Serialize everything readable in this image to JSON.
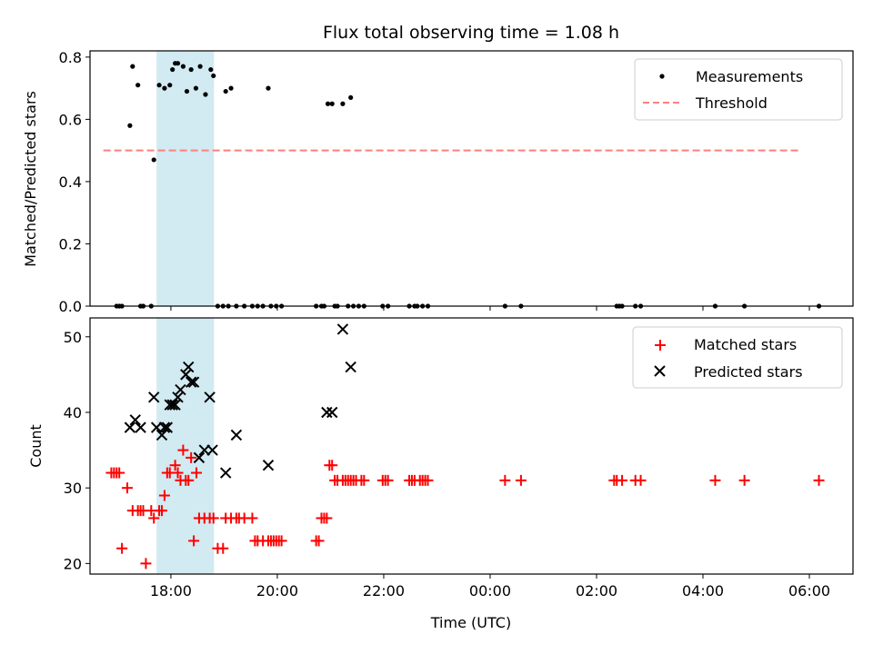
{
  "chart_data": [
    {
      "type": "scatter",
      "title": "Flux total observing time = 1.08 h",
      "xlabel": "",
      "ylabel": "Matched/Predicted stars",
      "xlim": [
        16.48,
        30.82
      ],
      "ylim": [
        0,
        0.82
      ],
      "yticks": [
        0.0,
        0.2,
        0.4,
        0.6,
        0.8
      ],
      "ytick_labels": [
        "0.0",
        "0.2",
        "0.4",
        "0.6",
        "0.8"
      ],
      "shaded_band": {
        "x_start": 17.73,
        "x_end": 18.81,
        "color": "#add8e6"
      },
      "legend": {
        "placement": "upper-right"
      },
      "series": [
        {
          "name": "Measurements",
          "marker": "dot",
          "color": "#000000",
          "x": [
            16.98,
            17.03,
            17.08,
            17.43,
            17.48,
            17.23,
            17.28,
            17.38,
            17.68,
            17.78,
            17.88,
            17.98,
            18.03,
            18.08,
            18.13,
            18.23,
            18.3,
            18.38,
            18.47,
            18.55,
            18.65,
            18.75,
            18.8,
            19.03,
            19.13,
            19.83,
            20.95,
            21.03,
            21.23,
            21.38,
            17.63,
            18.88,
            18.98,
            19.08,
            19.23,
            19.38,
            19.53,
            19.63,
            19.73,
            19.88,
            19.98,
            20.08,
            20.73,
            20.83,
            20.88,
            21.08,
            21.13,
            21.33,
            21.43,
            21.53,
            21.63,
            21.98,
            22.08,
            22.48,
            22.58,
            22.63,
            22.73,
            22.83,
            24.28,
            24.58,
            26.38,
            26.43,
            26.48,
            26.73,
            26.83,
            28.23,
            28.78,
            30.18
          ],
          "y": [
            0.0,
            0.0,
            0.0,
            0.0,
            0.0,
            0.58,
            0.77,
            0.71,
            0.47,
            0.71,
            0.7,
            0.71,
            0.76,
            0.78,
            0.78,
            0.77,
            0.69,
            0.76,
            0.7,
            0.77,
            0.68,
            0.76,
            0.74,
            0.69,
            0.7,
            0.7,
            0.65,
            0.65,
            0.65,
            0.67,
            0.0,
            0.0,
            0.0,
            0.0,
            0.0,
            0.0,
            0.0,
            0.0,
            0.0,
            0.0,
            0.0,
            0.0,
            0.0,
            0.0,
            0.0,
            0.0,
            0.0,
            0.0,
            0.0,
            0.0,
            0.0,
            0.0,
            0.0,
            0.0,
            0.0,
            0.0,
            0.0,
            0.0,
            0.0,
            0.0,
            0.0,
            0.0,
            0.0,
            0.0,
            0.0,
            0.0,
            0.0,
            0.0
          ]
        },
        {
          "name": "Threshold",
          "type": "line",
          "style": "dashed",
          "color": "#ff7f7f",
          "x": [
            16.73,
            29.83
          ],
          "y": [
            0.5,
            0.5
          ]
        }
      ]
    },
    {
      "type": "scatter",
      "xlabel": "Time (UTC)",
      "ylabel": "Count",
      "xlim": [
        16.48,
        30.82
      ],
      "ylim": [
        18.6,
        52.5
      ],
      "yticks": [
        20,
        30,
        40,
        50
      ],
      "ytick_labels": [
        "20",
        "30",
        "40",
        "50"
      ],
      "xticks": [
        18,
        20,
        22,
        24,
        26,
        28,
        30
      ],
      "xtick_labels": [
        "18:00",
        "20:00",
        "22:00",
        "00:00",
        "02:00",
        "04:00",
        "06:00"
      ],
      "shaded_band": {
        "x_start": 17.73,
        "x_end": 18.81,
        "color": "#add8e6"
      },
      "legend": {
        "placement": "upper-right"
      },
      "series": [
        {
          "name": "Matched stars",
          "marker": "plus",
          "color": "#ff0000",
          "x": [
            16.88,
            16.93,
            16.98,
            17.03,
            17.08,
            17.18,
            17.28,
            17.38,
            17.43,
            17.48,
            17.53,
            17.63,
            17.68,
            17.78,
            17.83,
            17.88,
            17.93,
            17.98,
            18.08,
            18.13,
            18.18,
            18.23,
            18.28,
            18.33,
            18.38,
            18.43,
            18.48,
            18.53,
            18.63,
            18.73,
            18.8,
            18.88,
            18.98,
            19.03,
            19.13,
            19.23,
            19.28,
            19.38,
            19.53,
            19.58,
            19.63,
            19.73,
            19.83,
            19.88,
            19.93,
            19.98,
            20.03,
            20.08,
            20.73,
            20.78,
            20.83,
            20.88,
            20.93,
            20.98,
            21.03,
            21.08,
            21.13,
            21.23,
            21.28,
            21.33,
            21.38,
            21.43,
            21.48,
            21.58,
            21.63,
            21.98,
            22.03,
            22.08,
            22.48,
            22.53,
            22.58,
            22.68,
            22.73,
            22.78,
            22.83,
            24.28,
            24.58,
            26.33,
            26.38,
            26.48,
            26.73,
            26.83,
            28.23,
            28.78,
            30.18
          ],
          "y": [
            32,
            32,
            32,
            32,
            22,
            30,
            27,
            27,
            27,
            27,
            20,
            27,
            26,
            27,
            27,
            29,
            32,
            32,
            33,
            32,
            31,
            35,
            31,
            31,
            34,
            23,
            32,
            26,
            26,
            26,
            26,
            22,
            22,
            26,
            26,
            26,
            26,
            26,
            26,
            23,
            23,
            23,
            23,
            23,
            23,
            23,
            23,
            23,
            23,
            23,
            26,
            26,
            26,
            33,
            33,
            31,
            31,
            31,
            31,
            31,
            31,
            31,
            31,
            31,
            31,
            31,
            31,
            31,
            31,
            31,
            31,
            31,
            31,
            31,
            31,
            31,
            31,
            31,
            31,
            31,
            31,
            31,
            31,
            31,
            31
          ]
        },
        {
          "name": "Predicted stars",
          "marker": "x",
          "color": "#000000",
          "x": [
            17.23,
            17.33,
            17.43,
            17.68,
            17.73,
            17.83,
            17.88,
            17.93,
            17.98,
            18.03,
            18.08,
            18.13,
            18.18,
            18.28,
            18.33,
            18.38,
            18.43,
            18.53,
            18.63,
            18.73,
            18.78,
            19.03,
            19.23,
            19.83,
            20.93,
            21.03,
            21.23,
            21.38
          ],
          "y": [
            38,
            39,
            38,
            42,
            38,
            37,
            38,
            38,
            41,
            41,
            41,
            42,
            43,
            45,
            46,
            44,
            44,
            34,
            35,
            42,
            35,
            32,
            37,
            33,
            40,
            40,
            51,
            46
          ]
        }
      ]
    }
  ]
}
